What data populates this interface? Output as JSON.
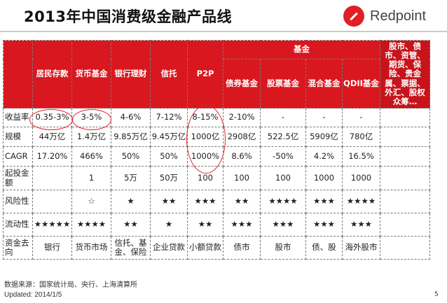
{
  "title": "2013年中国消费级金融产品线",
  "logo": {
    "text": "Redpoint",
    "icon": "redpoint-logo-icon",
    "color": "#e21f26"
  },
  "colors": {
    "header_red": "#d9171f",
    "circle_red": "#e0232b"
  },
  "header": {
    "products": [
      "居民存款",
      "货币基金",
      "银行理财",
      "信托",
      "P2P"
    ],
    "fund_group": "基金",
    "fund_types": [
      "债券基金",
      "股票基金",
      "混合基金",
      "QDII基金"
    ],
    "other": "股市、债市、资管、期货、保险、贵金属、票据、外汇、股权众筹…"
  },
  "rows": [
    {
      "label": "收益率",
      "cells": [
        "0.35-3%",
        "3-5%",
        "4-6%",
        "7-12%",
        "8-15%",
        "2-10%",
        "-",
        "-",
        "-"
      ]
    },
    {
      "label": "规模",
      "cells": [
        "44万亿",
        "1.4万亿",
        "9.85万亿",
        "9.45万亿",
        "1000亿",
        "2908亿",
        "522.5亿",
        "5909亿",
        "780亿"
      ]
    },
    {
      "label": "CAGR",
      "cells": [
        "17.20%",
        "466%",
        "50%",
        "50%",
        "1000%",
        "8.6%",
        "-50%",
        "4.2%",
        "16.5%"
      ]
    },
    {
      "label": "起投金额",
      "cells": [
        "",
        "1",
        "5万",
        "50万",
        "100",
        "100",
        "100",
        "1000",
        "1000"
      ]
    },
    {
      "label": "风险性",
      "cells": [
        "",
        "☆",
        "★",
        "★★",
        "★★★",
        "★★",
        "★★★★",
        "★★★",
        "★★★★"
      ]
    },
    {
      "label": "流动性",
      "cells": [
        "★★★★★",
        "★★★★",
        "★★",
        "★",
        "★★",
        "★★★",
        "★★★",
        "★★★",
        "★★★"
      ]
    },
    {
      "label": "资金去向",
      "cells": [
        "银行",
        "货币市场",
        "信托、基金、保险",
        "企业贷款",
        "小额贷款",
        "债市",
        "股市",
        "债、股",
        "海外股市"
      ]
    }
  ],
  "footer": {
    "source": "数据来源：国家统计局、央行、上海清算所",
    "updated": "Updated: 2014/1/5",
    "page": "5"
  }
}
